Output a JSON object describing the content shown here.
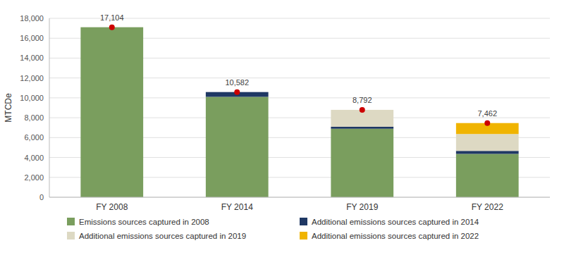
{
  "chart_data": {
    "type": "bar",
    "stacked": true,
    "categories": [
      "FY 2008",
      "FY 2014",
      "FY 2019",
      "FY 2022"
    ],
    "series": [
      {
        "name": "Emissions sources captured in 2008",
        "color": "#7a9e5e",
        "values": [
          17104,
          10100,
          6892,
          4362
        ]
      },
      {
        "name": "Additional emissions sources captured in 2014",
        "color": "#1f3864",
        "values": [
          0,
          482,
          200,
          300
        ]
      },
      {
        "name": "Additional emissions sources captured in 2019",
        "color": "#ddd9c3",
        "values": [
          0,
          0,
          1700,
          1700
        ]
      },
      {
        "name": "Additional emissions sources captured in 2022",
        "color": "#f0b400",
        "values": [
          0,
          0,
          0,
          1100
        ]
      },
      {
        "type": "scatter",
        "marker": "circle",
        "color": "#cc0000",
        "data_labels": true,
        "values": [
          17104,
          10582,
          8792,
          7462
        ],
        "value_labels": [
          "17,104",
          "10,582",
          "8,792",
          "7,462"
        ]
      }
    ],
    "ylabel": "MTCDe",
    "ylim": [
      0,
      18000
    ],
    "yticks": [
      0,
      {
        "value": 2000,
        "label": "2,000"
      },
      {
        "value": 4000,
        "label": "4,000"
      },
      {
        "value": 6000,
        "label": "6,000"
      },
      {
        "value": 8000,
        "label": "8,000"
      },
      {
        "value": 10000,
        "label": "10,000"
      },
      {
        "value": 12000,
        "label": "12,000"
      },
      {
        "value": 14000,
        "label": "14,000"
      },
      {
        "value": 16000,
        "label": "16,000"
      },
      {
        "value": 18000,
        "label": "18,000"
      }
    ],
    "grid": true,
    "legend": "bottom"
  }
}
